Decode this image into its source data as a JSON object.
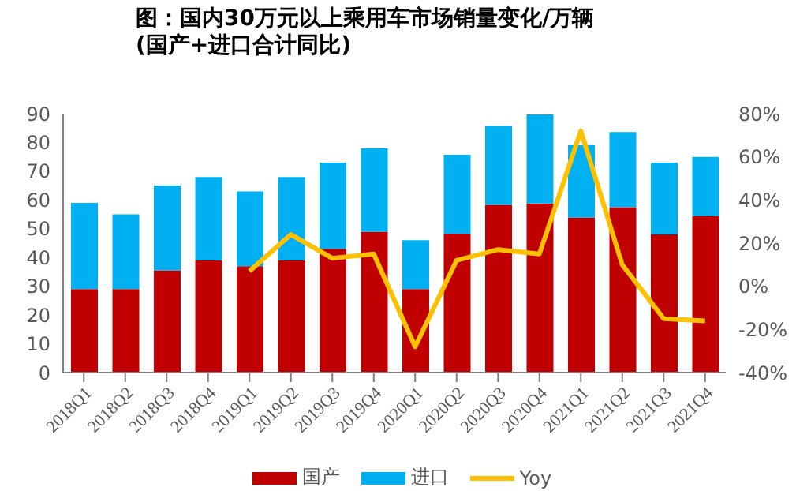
{
  "chart_data": {
    "type": "bar",
    "title": "图：国内30万元以上乘用车市场销量变化/万辆\n(国产+进口合计同比)",
    "stacked": true,
    "categories": [
      "2018Q1",
      "2018Q2",
      "2018Q3",
      "2018Q4",
      "2019Q1",
      "2019Q2",
      "2019Q3",
      "2019Q4",
      "2020Q1",
      "2020Q2",
      "2020Q3",
      "2020Q4",
      "2021Q1",
      "2021Q2",
      "2021Q3",
      "2021Q4"
    ],
    "series": [
      {
        "name": "国产",
        "color": "#c00000",
        "values": [
          29,
          29,
          35.5,
          39,
          37,
          39,
          43,
          49,
          29,
          48.3,
          58.3,
          58.8,
          53.9,
          57.5,
          48,
          54.5
        ]
      },
      {
        "name": "进口",
        "color": "#00b0f0",
        "values": [
          30,
          26,
          29.5,
          29,
          26,
          29,
          30,
          29,
          17,
          27.4,
          27.4,
          30.9,
          25.1,
          26.1,
          25,
          20.5
        ]
      },
      {
        "name": "Yoy",
        "type": "line",
        "axis": "y2",
        "color": "#ffc000",
        "values": [
          null,
          null,
          null,
          null,
          7,
          24,
          13,
          15,
          -28,
          12,
          17,
          15,
          72,
          10,
          -15,
          -16
        ]
      }
    ],
    "ylim": [
      0,
      90
    ],
    "yticks": [
      0,
      10,
      20,
      30,
      40,
      50,
      60,
      70,
      80,
      90
    ],
    "y2lim": [
      -40,
      80
    ],
    "y2ticks": [
      {
        "value": -40,
        "label": "-40%"
      },
      {
        "value": -20,
        "label": "-20%"
      },
      {
        "value": 0,
        "label": "0%"
      },
      {
        "value": 20,
        "label": "20%"
      },
      {
        "value": 40,
        "label": "40%"
      },
      {
        "value": 60,
        "label": "60%"
      },
      {
        "value": 80,
        "label": "80%"
      }
    ],
    "grid": false,
    "legend": "bottom",
    "marker": "none",
    "line_style": "solid"
  }
}
